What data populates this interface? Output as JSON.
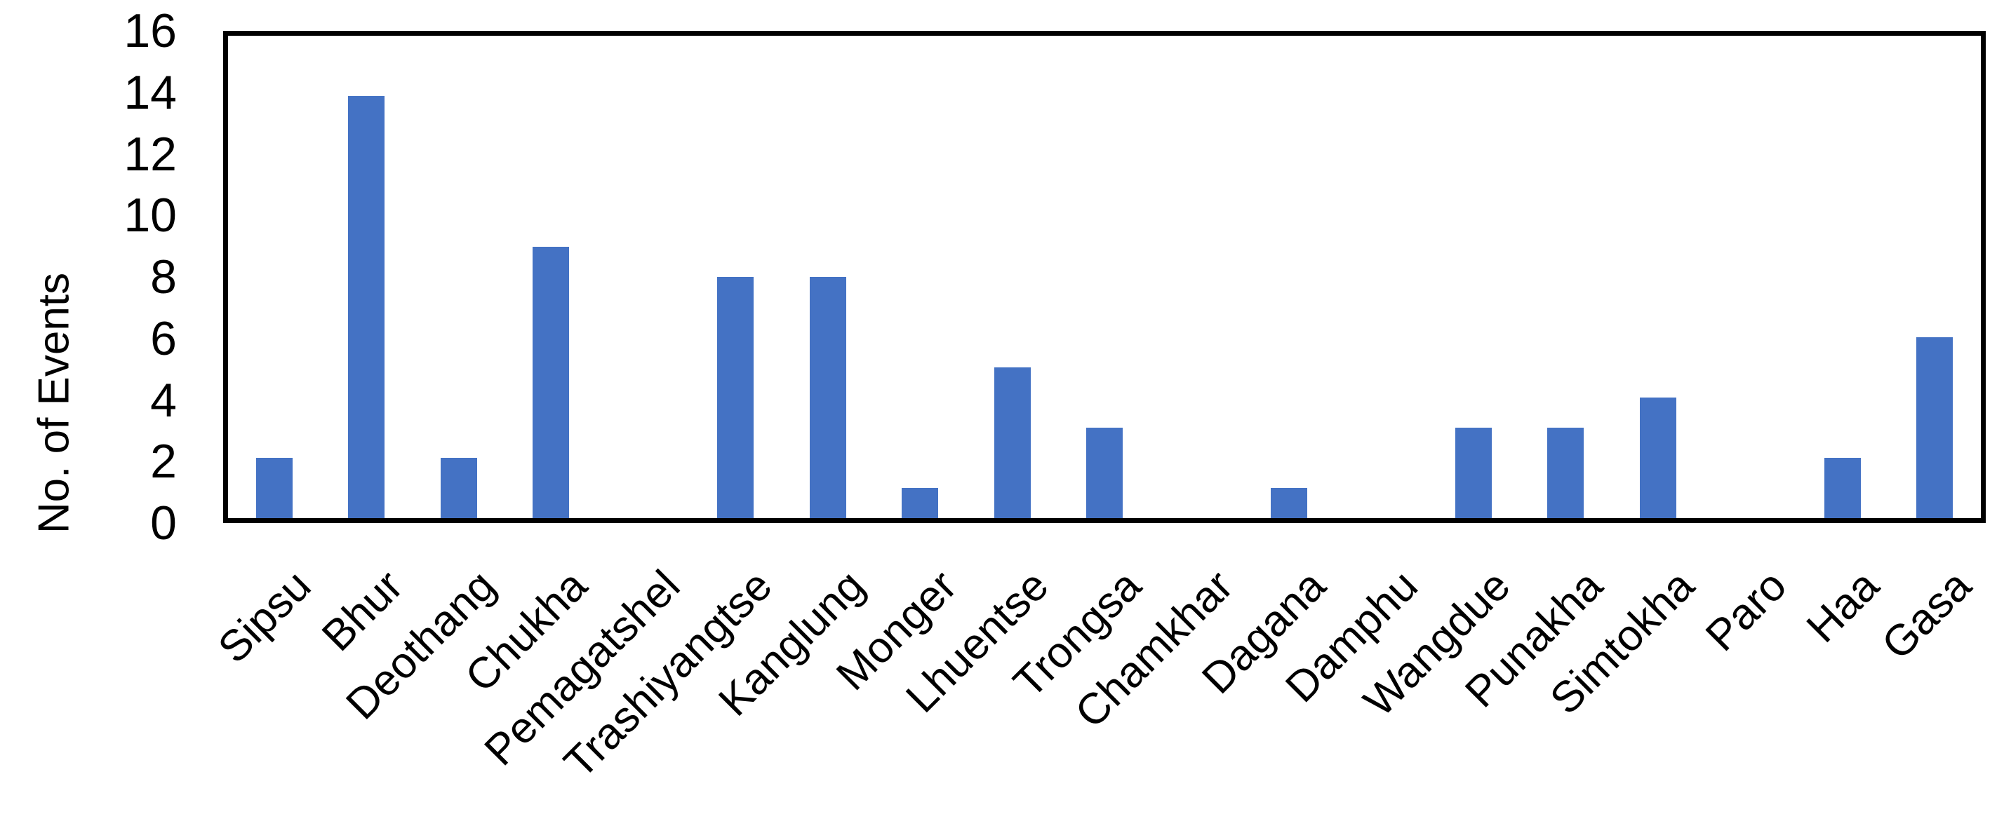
{
  "chart_data": {
    "type": "bar",
    "title": "",
    "xlabel": "",
    "ylabel": "No. of Events",
    "categories": [
      "Sipsu",
      "Bhur",
      "Deothang",
      "Chukha",
      "Pemagatshel",
      "Trashiyangtse",
      "Kanglung",
      "Monger",
      "Lhuentse",
      "Trongsa",
      "Chamkhar",
      "Dagana",
      "Damphu",
      "Wangdue",
      "Punakha",
      "Simtokha",
      "Paro",
      "Haa",
      "Gasa"
    ],
    "values": [
      2,
      14,
      2,
      9,
      0,
      8,
      8,
      1,
      5,
      3,
      0,
      1,
      0,
      3,
      3,
      4,
      0,
      2,
      6
    ],
    "yticks": [
      0,
      2,
      4,
      6,
      8,
      10,
      12,
      14,
      16
    ],
    "ylim": [
      0,
      16
    ],
    "grid": false,
    "legend": false,
    "bar_color": "#4472C4",
    "axis_color": "#000000",
    "background_color": "#FFFFFF"
  }
}
